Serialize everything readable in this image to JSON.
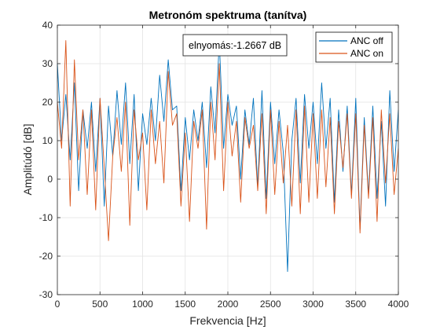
{
  "chart_data": {
    "type": "line",
    "title": "Metronóm spektruma (tanítva)",
    "xlabel": "Frekvencia [Hz]",
    "ylabel": "Amplitúdó [dB]",
    "xlim": [
      0,
      4000
    ],
    "ylim": [
      -30,
      40
    ],
    "xticks": [
      0,
      500,
      1000,
      1500,
      2000,
      2500,
      3000,
      3500,
      4000
    ],
    "xtick_labels": [
      "0",
      "500",
      "1000",
      "1500",
      "2000",
      "2500",
      "3000",
      "3500",
      "4000"
    ],
    "yticks": [
      -30,
      -20,
      -10,
      0,
      10,
      20,
      30,
      40
    ],
    "ytick_labels": [
      "-30",
      "-20",
      "-10",
      "0",
      "10",
      "20",
      "30",
      "40"
    ],
    "grid": true,
    "legend_position": "top-right",
    "annotation": "elnyomás:-1.2667 dB",
    "series": [
      {
        "name": "ANC off",
        "color": "#0072BD",
        "x": [
          0,
          50,
          100,
          150,
          200,
          250,
          300,
          350,
          400,
          450,
          500,
          550,
          600,
          650,
          700,
          750,
          800,
          850,
          900,
          950,
          1000,
          1050,
          1100,
          1150,
          1200,
          1250,
          1300,
          1350,
          1400,
          1450,
          1500,
          1550,
          1600,
          1650,
          1700,
          1750,
          1800,
          1850,
          1900,
          1950,
          2000,
          2050,
          2100,
          2150,
          2200,
          2250,
          2300,
          2350,
          2400,
          2450,
          2500,
          2550,
          2600,
          2650,
          2700,
          2750,
          2800,
          2850,
          2900,
          2950,
          3000,
          3050,
          3100,
          3150,
          3200,
          3250,
          3300,
          3350,
          3400,
          3450,
          3500,
          3550,
          3600,
          3650,
          3700,
          3750,
          3800,
          3850,
          3900,
          3950,
          4000
        ],
        "y": [
          30,
          10,
          22,
          5,
          25,
          -3,
          18,
          8,
          20,
          2,
          21,
          -7,
          19,
          6,
          23,
          9,
          25,
          4,
          22,
          -3,
          17,
          9,
          21,
          10,
          27,
          15,
          31,
          18,
          19,
          -3,
          16,
          5,
          18,
          10,
          20,
          3,
          24,
          12,
          36,
          8,
          22,
          14,
          19,
          0,
          18,
          9,
          21,
          -2,
          23,
          -5,
          20,
          4,
          18,
          7,
          -24,
          10,
          21,
          -1,
          22,
          8,
          20,
          4,
          25,
          8,
          21,
          -6,
          18,
          2,
          19,
          -4,
          21,
          -13,
          16,
          -4,
          19,
          -5,
          15,
          -7,
          23,
          2,
          18
        ]
      },
      {
        "name": "ANC on",
        "color": "#D95319",
        "x": [
          0,
          50,
          100,
          150,
          200,
          250,
          300,
          350,
          400,
          450,
          500,
          550,
          600,
          650,
          700,
          750,
          800,
          850,
          900,
          950,
          1000,
          1050,
          1100,
          1150,
          1200,
          1250,
          1300,
          1350,
          1400,
          1450,
          1500,
          1550,
          1600,
          1650,
          1700,
          1750,
          1800,
          1850,
          1900,
          1950,
          2000,
          2050,
          2100,
          2150,
          2200,
          2250,
          2300,
          2350,
          2400,
          2450,
          2500,
          2550,
          2600,
          2650,
          2700,
          2750,
          2800,
          2850,
          2900,
          2950,
          3000,
          3050,
          3100,
          3150,
          3200,
          3250,
          3300,
          3350,
          3400,
          3450,
          3500,
          3550,
          3600,
          3650,
          3700,
          3750,
          3800,
          3850,
          3900,
          3950,
          4000
        ],
        "y": [
          20,
          8,
          36,
          -7,
          31,
          5,
          18,
          -4,
          18,
          -8,
          21,
          3,
          -16,
          6,
          16,
          2,
          20,
          -12,
          18,
          5,
          12,
          -8,
          18,
          4,
          15,
          -1,
          28,
          14,
          17,
          -7,
          12,
          -11,
          15,
          8,
          18,
          -13,
          20,
          5,
          30,
          -3,
          20,
          6,
          15,
          -6,
          16,
          8,
          14,
          -3,
          17,
          -9,
          18,
          -4,
          15,
          -1,
          14,
          -7,
          18,
          -9,
          19,
          -6,
          17,
          -5,
          18,
          -2,
          16,
          -9,
          15,
          3,
          17,
          -5,
          17,
          -14,
          14,
          -5,
          16,
          -11,
          18,
          -1,
          17,
          -4,
          8
        ]
      }
    ]
  }
}
